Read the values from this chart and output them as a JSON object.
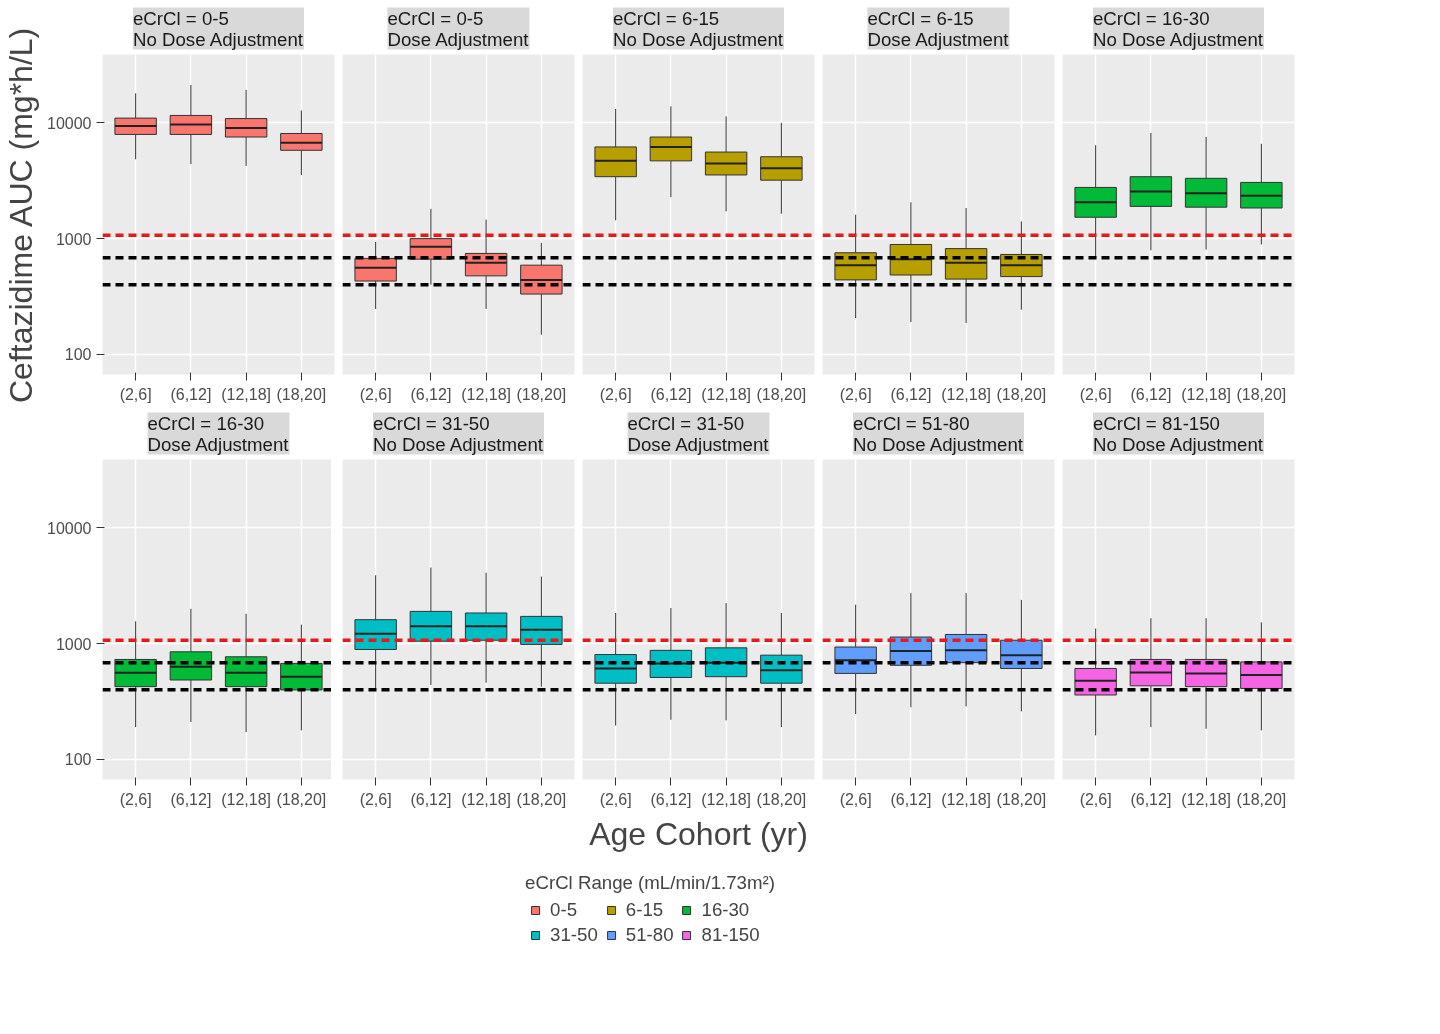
{
  "chart_data": [
    {
      "type": "box",
      "title": "eCrCl = 0-5\nNo Dose Adjustment",
      "ylabel": "Ceftazidime AUC (mg*h/L)",
      "legend_title": "eCrCl Range (mL/min/1.73m²)",
      "legend": "bottom",
      "categories": [
        "(2,6]",
        "(6,12]",
        "(12,18]",
        "(18,20]"
      ],
      "log": true,
      "grid": true,
      "ylim": [
        67,
        39000
      ],
      "yticks": [
        100,
        1000,
        10000
      ],
      "ref_lines": [
        {
          "axis": "y",
          "value": 1070,
          "color": "#e41a1c",
          "line_style": "dashed"
        },
        {
          "axis": "y",
          "value": 685,
          "color": "#000000",
          "line_style": "dashed"
        },
        {
          "axis": "y",
          "value": 400,
          "color": "#000000",
          "line_style": "dashed"
        }
      ],
      "series": [
        {
          "name": "0-5",
          "color": "#f8766d",
          "boxes": [
            {
              "low": 4850,
              "q1": 7950,
              "median": 9400,
              "q3": 11000,
              "high": 18000
            },
            {
              "low": 4400,
              "q1": 7950,
              "median": 9700,
              "q3": 11600,
              "high": 21300
            },
            {
              "low": 4250,
              "q1": 7550,
              "median": 9050,
              "q3": 10900,
              "high": 19300
            },
            {
              "low": 3550,
              "q1": 5800,
              "median": 6750,
              "q3": 8100,
              "high": 12800
            }
          ]
        }
      ]
    },
    {
      "type": "box",
      "title": "eCrCl = 0-5\nDose Adjustment",
      "tick_labels": "x",
      "categories": [
        "(2,6]",
        "(6,12]",
        "(12,18]",
        "(18,20]"
      ],
      "log": true,
      "grid": true,
      "ylim": [
        67,
        39000
      ],
      "yticks": [
        100,
        1000,
        10000
      ],
      "ref_lines": [
        {
          "axis": "y",
          "value": 1070,
          "color": "#e41a1c",
          "line_style": "dashed"
        },
        {
          "axis": "y",
          "value": 685,
          "color": "#000000",
          "line_style": "dashed"
        },
        {
          "axis": "y",
          "value": 400,
          "color": "#000000",
          "line_style": "dashed"
        }
      ],
      "series": [
        {
          "color": "#f8766d",
          "boxes": [
            {
              "low": 247,
              "q1": 430,
              "median": 560,
              "q3": 675,
              "high": 935
            },
            {
              "low": 400,
              "q1": 665,
              "median": 850,
              "q3": 1000,
              "high": 1810
            },
            {
              "low": 247,
              "q1": 477,
              "median": 620,
              "q3": 745,
              "high": 1460
            },
            {
              "low": 148,
              "q1": 332,
              "median": 440,
              "q3": 590,
              "high": 920
            }
          ]
        }
      ]
    },
    {
      "type": "box",
      "title": "eCrCl = 6-15\nNo Dose Adjustment",
      "tick_labels": "x",
      "categories": [
        "(2,6]",
        "(6,12]",
        "(12,18]",
        "(18,20]"
      ],
      "log": true,
      "grid": true,
      "ylim": [
        67,
        39000
      ],
      "yticks": [
        100,
        1000,
        10000
      ],
      "ref_lines": [
        {
          "axis": "y",
          "value": 1070,
          "color": "#e41a1c",
          "line_style": "dashed"
        },
        {
          "axis": "y",
          "value": 685,
          "color": "#000000",
          "line_style": "dashed"
        },
        {
          "axis": "y",
          "value": 400,
          "color": "#000000",
          "line_style": "dashed"
        }
      ],
      "series": [
        {
          "name": "6-15",
          "color": "#b79f00",
          "boxes": [
            {
              "low": 1440,
              "q1": 3430,
              "median": 4700,
              "q3": 6200,
              "high": 13200
            },
            {
              "low": 2280,
              "q1": 4700,
              "median": 6200,
              "q3": 7550,
              "high": 13900
            },
            {
              "low": 1720,
              "q1": 3550,
              "median": 4470,
              "q3": 5600,
              "high": 11400
            },
            {
              "low": 1640,
              "q1": 3200,
              "median": 4050,
              "q3": 5100,
              "high": 10000
            }
          ]
        }
      ]
    },
    {
      "type": "box",
      "title": "eCrCl = 6-15\nDose Adjustment",
      "tick_labels": "x",
      "categories": [
        "(2,6]",
        "(6,12]",
        "(12,18]",
        "(18,20]"
      ],
      "log": true,
      "grid": true,
      "ylim": [
        67,
        39000
      ],
      "yticks": [
        100,
        1000,
        10000
      ],
      "ref_lines": [
        {
          "axis": "y",
          "value": 1070,
          "color": "#e41a1c",
          "line_style": "dashed"
        },
        {
          "axis": "y",
          "value": 685,
          "color": "#000000",
          "line_style": "dashed"
        },
        {
          "axis": "y",
          "value": 400,
          "color": "#000000",
          "line_style": "dashed"
        }
      ],
      "series": [
        {
          "color": "#b79f00",
          "boxes": [
            {
              "low": 206,
              "q1": 440,
              "median": 590,
              "q3": 755,
              "high": 1610
            },
            {
              "low": 190,
              "q1": 485,
              "median": 665,
              "q3": 890,
              "high": 2060
            },
            {
              "low": 187,
              "q1": 447,
              "median": 620,
              "q3": 820,
              "high": 1840
            },
            {
              "low": 243,
              "q1": 470,
              "median": 590,
              "q3": 730,
              "high": 1410
            }
          ]
        }
      ]
    },
    {
      "type": "box",
      "title": "eCrCl = 16-30\nNo Dose Adjustment",
      "tick_labels": "x",
      "categories": [
        "(2,6]",
        "(6,12]",
        "(12,18]",
        "(18,20]"
      ],
      "log": true,
      "grid": true,
      "ylim": [
        67,
        39000
      ],
      "yticks": [
        100,
        1000,
        10000
      ],
      "ref_lines": [
        {
          "axis": "y",
          "value": 1070,
          "color": "#e41a1c",
          "line_style": "dashed"
        },
        {
          "axis": "y",
          "value": 685,
          "color": "#000000",
          "line_style": "dashed"
        },
        {
          "axis": "y",
          "value": 400,
          "color": "#000000",
          "line_style": "dashed"
        }
      ],
      "series": [
        {
          "name": "16-30",
          "color": "#00ba38",
          "boxes": [
            {
              "low": 675,
              "q1": 1530,
              "median": 2060,
              "q3": 2770,
              "high": 6400
            },
            {
              "low": 795,
              "q1": 1900,
              "median": 2550,
              "q3": 3430,
              "high": 8200
            },
            {
              "low": 805,
              "q1": 1870,
              "median": 2470,
              "q3": 3320,
              "high": 7550
            },
            {
              "low": 890,
              "q1": 1840,
              "median": 2350,
              "q3": 3060,
              "high": 6600
            }
          ]
        }
      ]
    },
    {
      "type": "box",
      "title": "eCrCl = 16-30\nDose Adjustment",
      "categories": [
        "(2,6]",
        "(6,12]",
        "(12,18]",
        "(18,20]"
      ],
      "log": true,
      "grid": true,
      "ylim": [
        67,
        39000
      ],
      "yticks": [
        100,
        1000,
        10000
      ],
      "ref_lines": [
        {
          "axis": "y",
          "value": 1070,
          "color": "#e41a1c",
          "line_style": "dashed"
        },
        {
          "axis": "y",
          "value": 685,
          "color": "#000000",
          "line_style": "dashed"
        },
        {
          "axis": "y",
          "value": 400,
          "color": "#000000",
          "line_style": "dashed"
        }
      ],
      "series": [
        {
          "color": "#00ba38",
          "boxes": [
            {
              "low": 190,
              "q1": 425,
              "median": 560,
              "q3": 730,
              "high": 1560
            },
            {
              "low": 210,
              "q1": 485,
              "median": 630,
              "q3": 850,
              "high": 2000
            },
            {
              "low": 172,
              "q1": 425,
              "median": 560,
              "q3": 770,
              "high": 1810
            },
            {
              "low": 178,
              "q1": 398,
              "median": 518,
              "q3": 675,
              "high": 1460
            }
          ]
        }
      ]
    },
    {
      "type": "box",
      "title": "eCrCl = 31-50\nNo Dose Adjustment",
      "tick_labels": "x",
      "categories": [
        "(2,6]",
        "(6,12]",
        "(12,18]",
        "(18,20]"
      ],
      "log": true,
      "grid": true,
      "ylim": [
        67,
        39000
      ],
      "yticks": [
        100,
        1000,
        10000
      ],
      "ref_lines": [
        {
          "axis": "y",
          "value": 1070,
          "color": "#e41a1c",
          "line_style": "dashed"
        },
        {
          "axis": "y",
          "value": 685,
          "color": "#000000",
          "line_style": "dashed"
        },
        {
          "axis": "y",
          "value": 400,
          "color": "#000000",
          "line_style": "dashed"
        }
      ],
      "series": [
        {
          "name": "31-50",
          "color": "#00bfc4",
          "boxes": [
            {
              "low": 410,
              "q1": 890,
              "median": 1220,
              "q3": 1610,
              "high": 3900
            },
            {
              "low": 440,
              "q1": 1050,
              "median": 1410,
              "q3": 1900,
              "high": 4550
            },
            {
              "low": 460,
              "q1": 1070,
              "median": 1410,
              "q3": 1840,
              "high": 4100
            },
            {
              "low": 425,
              "q1": 985,
              "median": 1320,
              "q3": 1720,
              "high": 3800
            }
          ]
        }
      ]
    },
    {
      "type": "box",
      "title": "eCrCl = 31-50\nDose Adjustment",
      "xlabel": "Age Cohort (yr)",
      "tick_labels": "x",
      "categories": [
        "(2,6]",
        "(6,12]",
        "(12,18]",
        "(18,20]"
      ],
      "log": true,
      "grid": true,
      "ylim": [
        67,
        39000
      ],
      "yticks": [
        100,
        1000,
        10000
      ],
      "ref_lines": [
        {
          "axis": "y",
          "value": 1070,
          "color": "#e41a1c",
          "line_style": "dashed"
        },
        {
          "axis": "y",
          "value": 685,
          "color": "#000000",
          "line_style": "dashed"
        },
        {
          "axis": "y",
          "value": 400,
          "color": "#000000",
          "line_style": "dashed"
        }
      ],
      "series": [
        {
          "color": "#00bfc4",
          "boxes": [
            {
              "low": 196,
              "q1": 455,
              "median": 610,
              "q3": 805,
              "high": 1840
            },
            {
              "low": 220,
              "q1": 510,
              "median": 675,
              "q3": 875,
              "high": 2030
            },
            {
              "low": 217,
              "q1": 518,
              "median": 685,
              "q3": 920,
              "high": 2240
            },
            {
              "low": 190,
              "q1": 455,
              "median": 590,
              "q3": 795,
              "high": 1840
            }
          ]
        }
      ]
    },
    {
      "type": "box",
      "title": "eCrCl = 51-80\nNo Dose Adjustment",
      "tick_labels": "x",
      "categories": [
        "(2,6]",
        "(6,12]",
        "(12,18]",
        "(18,20]"
      ],
      "log": true,
      "grid": true,
      "ylim": [
        67,
        39000
      ],
      "yticks": [
        100,
        1000,
        10000
      ],
      "ref_lines": [
        {
          "axis": "y",
          "value": 1070,
          "color": "#e41a1c",
          "line_style": "dashed"
        },
        {
          "axis": "y",
          "value": 685,
          "color": "#000000",
          "line_style": "dashed"
        },
        {
          "axis": "y",
          "value": 400,
          "color": "#000000",
          "line_style": "dashed"
        }
      ],
      "series": [
        {
          "name": "51-80",
          "color": "#619cff",
          "boxes": [
            {
              "low": 247,
              "q1": 553,
              "median": 720,
              "q3": 935,
              "high": 2170
            },
            {
              "low": 282,
              "q1": 650,
              "median": 865,
              "q3": 1140,
              "high": 2730
            },
            {
              "low": 287,
              "q1": 685,
              "median": 875,
              "q3": 1200,
              "high": 2730
            },
            {
              "low": 260,
              "q1": 610,
              "median": 795,
              "q3": 1070,
              "high": 2390
            }
          ]
        }
      ]
    },
    {
      "type": "box",
      "title": "eCrCl = 81-150\nNo Dose Adjustment",
      "tick_labels": "x",
      "categories": [
        "(2,6]",
        "(6,12]",
        "(12,18]",
        "(18,20]"
      ],
      "log": true,
      "grid": true,
      "ylim": [
        67,
        39000
      ],
      "yticks": [
        100,
        1000,
        10000
      ],
      "ref_lines": [
        {
          "axis": "y",
          "value": 1070,
          "color": "#e41a1c",
          "line_style": "dashed"
        },
        {
          "axis": "y",
          "value": 685,
          "color": "#000000",
          "line_style": "dashed"
        },
        {
          "axis": "y",
          "value": 400,
          "color": "#000000",
          "line_style": "dashed"
        }
      ],
      "series": [
        {
          "name": "81-150",
          "color": "#f564e3",
          "boxes": [
            {
              "low": 161,
              "q1": 360,
              "median": 477,
              "q3": 610,
              "high": 1350
            },
            {
              "low": 190,
              "q1": 432,
              "median": 562,
              "q3": 730,
              "high": 1660
            },
            {
              "low": 184,
              "q1": 425,
              "median": 553,
              "q3": 730,
              "high": 1660
            },
            {
              "low": 178,
              "q1": 410,
              "median": 535,
              "q3": 695,
              "high": 1530
            }
          ]
        }
      ]
    }
  ]
}
